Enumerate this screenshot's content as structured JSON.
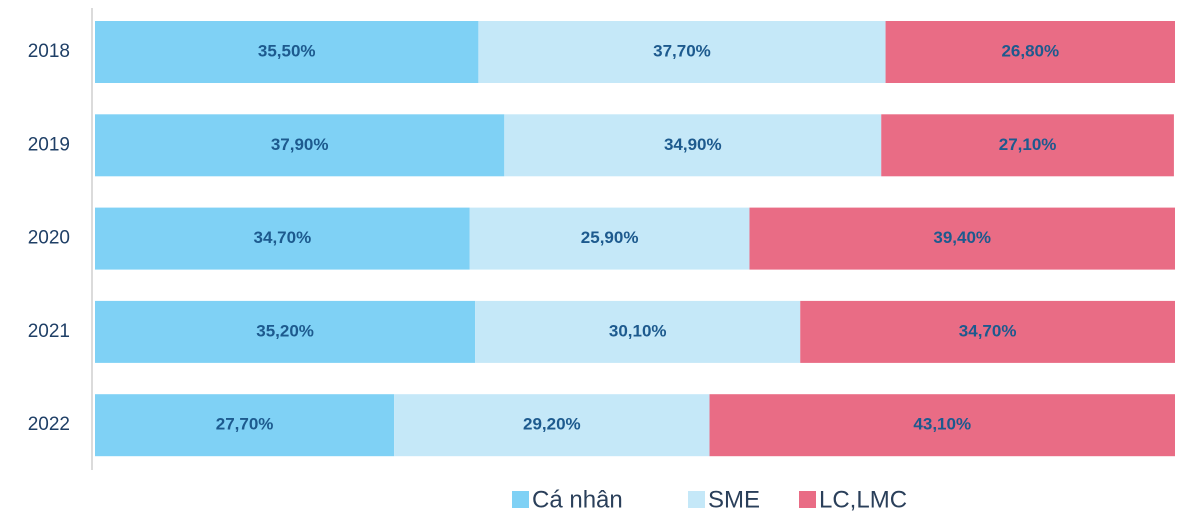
{
  "chart_data": {
    "type": "stacked_bar_horizontal",
    "categories": [
      "2018",
      "2019",
      "2020",
      "2021",
      "2022"
    ],
    "xlim": [
      0,
      100
    ],
    "series": [
      {
        "name": "Cá nhân",
        "color": "#7fd1f5",
        "values": [
          35.5,
          37.9,
          34.7,
          35.2,
          27.7
        ],
        "value_labels": [
          "35,50%",
          "37,90%",
          "34,70%",
          "35,20%",
          "27,70%"
        ]
      },
      {
        "name": "SME",
        "color": "#c5e8f8",
        "values": [
          37.7,
          34.9,
          25.9,
          30.1,
          29.2
        ],
        "value_labels": [
          "37,70%",
          "34,90%",
          "25,90%",
          "30,10%",
          "29,20%"
        ]
      },
      {
        "name": "LC,LMC",
        "color": "#e96c85",
        "values": [
          26.8,
          27.1,
          39.4,
          34.7,
          43.1
        ],
        "value_labels": [
          "26,80%",
          "27,10%",
          "39,40%",
          "34,70%",
          "43,10%"
        ]
      }
    ]
  }
}
